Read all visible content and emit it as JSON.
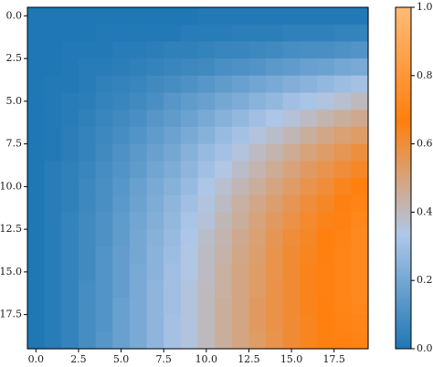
{
  "chart_data": {
    "type": "heatmap",
    "title": "",
    "xlabel": "",
    "ylabel": "",
    "rows": 20,
    "cols": 20,
    "x_ticks": [
      "0.0",
      "2.5",
      "5.0",
      "7.5",
      "10.0",
      "12.5",
      "15.0",
      "17.5"
    ],
    "x_tick_values": [
      0,
      2.5,
      5,
      7.5,
      10,
      12.5,
      15,
      17.5
    ],
    "y_ticks": [
      "0.0",
      "2.5",
      "5.0",
      "7.5",
      "10.0",
      "12.5",
      "15.0",
      "17.5"
    ],
    "y_tick_values": [
      0,
      2.5,
      5,
      7.5,
      10,
      12.5,
      15,
      17.5
    ],
    "x_range": [
      -0.5,
      19.5
    ],
    "y_range": [
      19.5,
      -0.5
    ],
    "colorbar": {
      "ticks": [
        "0.0",
        "0.2",
        "0.4",
        "0.6",
        "0.8",
        "1.0"
      ],
      "tick_values": [
        0.0,
        0.2,
        0.4,
        0.6,
        0.8,
        1.0
      ],
      "range": [
        0.0,
        1.0
      ],
      "colors": [
        "#1f77b4",
        "#aec7e8",
        "#ff7f0e",
        "#ffbb78"
      ]
    },
    "grid": false,
    "values": [
      [
        0.0,
        0.0,
        0.0,
        0.0,
        0.0,
        0.0,
        0.0,
        0.0,
        0.0,
        0.0,
        0.01,
        0.01,
        0.01,
        0.01,
        0.01,
        0.01,
        0.01,
        0.01,
        0.01,
        0.01
      ],
      [
        0.0,
        0.0,
        0.0,
        0.0,
        0.01,
        0.01,
        0.01,
        0.01,
        0.01,
        0.02,
        0.02,
        0.02,
        0.03,
        0.03,
        0.03,
        0.04,
        0.04,
        0.04,
        0.05,
        0.05
      ],
      [
        0.0,
        0.0,
        0.01,
        0.01,
        0.01,
        0.02,
        0.02,
        0.03,
        0.04,
        0.04,
        0.05,
        0.06,
        0.06,
        0.07,
        0.08,
        0.09,
        0.1,
        0.1,
        0.11,
        0.12
      ],
      [
        0.0,
        0.0,
        0.01,
        0.02,
        0.02,
        0.03,
        0.04,
        0.05,
        0.06,
        0.07,
        0.08,
        0.1,
        0.11,
        0.12,
        0.14,
        0.15,
        0.17,
        0.18,
        0.2,
        0.21
      ],
      [
        0.0,
        0.01,
        0.01,
        0.02,
        0.04,
        0.05,
        0.06,
        0.08,
        0.09,
        0.11,
        0.13,
        0.15,
        0.17,
        0.19,
        0.21,
        0.23,
        0.25,
        0.27,
        0.29,
        0.31
      ],
      [
        0.0,
        0.01,
        0.02,
        0.03,
        0.05,
        0.06,
        0.08,
        0.1,
        0.13,
        0.15,
        0.17,
        0.2,
        0.22,
        0.25,
        0.27,
        0.3,
        0.32,
        0.35,
        0.37,
        0.4
      ],
      [
        0.0,
        0.01,
        0.02,
        0.04,
        0.06,
        0.08,
        0.1,
        0.13,
        0.15,
        0.18,
        0.21,
        0.24,
        0.27,
        0.3,
        0.33,
        0.36,
        0.39,
        0.42,
        0.45,
        0.47
      ],
      [
        0.0,
        0.01,
        0.03,
        0.05,
        0.07,
        0.09,
        0.12,
        0.15,
        0.18,
        0.21,
        0.24,
        0.28,
        0.31,
        0.35,
        0.38,
        0.41,
        0.45,
        0.48,
        0.51,
        0.53
      ],
      [
        0.0,
        0.01,
        0.03,
        0.05,
        0.08,
        0.11,
        0.14,
        0.17,
        0.2,
        0.24,
        0.28,
        0.31,
        0.35,
        0.39,
        0.42,
        0.46,
        0.5,
        0.53,
        0.56,
        0.59
      ],
      [
        0.0,
        0.02,
        0.04,
        0.06,
        0.09,
        0.12,
        0.15,
        0.19,
        0.22,
        0.26,
        0.3,
        0.34,
        0.38,
        0.42,
        0.46,
        0.5,
        0.54,
        0.57,
        0.6,
        0.63
      ],
      [
        0.0,
        0.02,
        0.04,
        0.07,
        0.1,
        0.13,
        0.17,
        0.21,
        0.24,
        0.28,
        0.33,
        0.37,
        0.41,
        0.45,
        0.49,
        0.53,
        0.57,
        0.6,
        0.64,
        0.67
      ],
      [
        0.0,
        0.02,
        0.04,
        0.07,
        0.1,
        0.14,
        0.18,
        0.22,
        0.26,
        0.3,
        0.35,
        0.39,
        0.44,
        0.48,
        0.52,
        0.56,
        0.6,
        0.63,
        0.66,
        0.69
      ],
      [
        0.0,
        0.02,
        0.05,
        0.08,
        0.11,
        0.15,
        0.19,
        0.23,
        0.27,
        0.32,
        0.36,
        0.41,
        0.45,
        0.5,
        0.54,
        0.58,
        0.62,
        0.65,
        0.68,
        0.71
      ],
      [
        0.0,
        0.02,
        0.05,
        0.08,
        0.11,
        0.15,
        0.2,
        0.24,
        0.28,
        0.33,
        0.38,
        0.42,
        0.47,
        0.51,
        0.56,
        0.6,
        0.63,
        0.67,
        0.69,
        0.72
      ],
      [
        0.0,
        0.02,
        0.05,
        0.08,
        0.12,
        0.16,
        0.2,
        0.25,
        0.29,
        0.34,
        0.39,
        0.43,
        0.48,
        0.52,
        0.57,
        0.61,
        0.64,
        0.67,
        0.7,
        0.72
      ],
      [
        0.0,
        0.02,
        0.05,
        0.08,
        0.12,
        0.16,
        0.21,
        0.25,
        0.3,
        0.34,
        0.39,
        0.44,
        0.49,
        0.53,
        0.57,
        0.61,
        0.65,
        0.68,
        0.7,
        0.72
      ],
      [
        0.0,
        0.02,
        0.05,
        0.09,
        0.12,
        0.16,
        0.21,
        0.26,
        0.3,
        0.35,
        0.4,
        0.44,
        0.49,
        0.53,
        0.58,
        0.61,
        0.65,
        0.68,
        0.7,
        0.72
      ],
      [
        0.0,
        0.02,
        0.05,
        0.09,
        0.12,
        0.17,
        0.21,
        0.26,
        0.3,
        0.35,
        0.4,
        0.45,
        0.49,
        0.54,
        0.58,
        0.61,
        0.65,
        0.67,
        0.7,
        0.71
      ],
      [
        0.0,
        0.02,
        0.05,
        0.09,
        0.12,
        0.17,
        0.21,
        0.26,
        0.31,
        0.35,
        0.4,
        0.45,
        0.49,
        0.54,
        0.58,
        0.61,
        0.64,
        0.67,
        0.69,
        0.7
      ],
      [
        0.0,
        0.02,
        0.05,
        0.09,
        0.13,
        0.17,
        0.21,
        0.26,
        0.31,
        0.35,
        0.4,
        0.45,
        0.49,
        0.53,
        0.57,
        0.61,
        0.64,
        0.66,
        0.68,
        0.69
      ]
    ]
  }
}
